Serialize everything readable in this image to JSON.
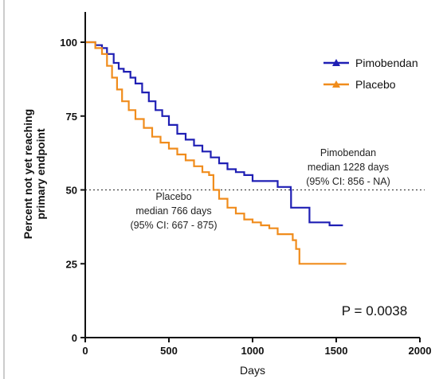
{
  "chart_data": {
    "type": "line",
    "title": "",
    "xlabel": "Days",
    "ylabel_lines": [
      "Percent not yet reaching",
      "primary endpoint"
    ],
    "xlim": [
      0,
      2000
    ],
    "ylim": [
      0,
      100
    ],
    "x_ticks": [
      "0",
      "500",
      "1000",
      "1500",
      "2000"
    ],
    "y_ticks": [
      "0",
      "25",
      "50",
      "75",
      "100"
    ],
    "reference_line": {
      "y": 50,
      "style": "dotted"
    },
    "legend": {
      "placement": "top-right"
    },
    "series": [
      {
        "name": "Pimobendan",
        "color": "#1f1fb4",
        "marker": "triangle",
        "points": [
          [
            0,
            100
          ],
          [
            60,
            99
          ],
          [
            100,
            98
          ],
          [
            130,
            96
          ],
          [
            170,
            93
          ],
          [
            200,
            91
          ],
          [
            230,
            90
          ],
          [
            270,
            88
          ],
          [
            300,
            86
          ],
          [
            340,
            83
          ],
          [
            380,
            80
          ],
          [
            420,
            77
          ],
          [
            460,
            75
          ],
          [
            500,
            72
          ],
          [
            550,
            69
          ],
          [
            600,
            67
          ],
          [
            650,
            65
          ],
          [
            700,
            63
          ],
          [
            750,
            61
          ],
          [
            800,
            59
          ],
          [
            850,
            57
          ],
          [
            900,
            56
          ],
          [
            950,
            55
          ],
          [
            1000,
            53
          ],
          [
            1050,
            53
          ],
          [
            1100,
            53
          ],
          [
            1150,
            51
          ],
          [
            1200,
            51
          ],
          [
            1228,
            50
          ],
          [
            1230,
            44
          ],
          [
            1300,
            44
          ],
          [
            1340,
            39
          ],
          [
            1400,
            39
          ],
          [
            1460,
            38
          ],
          [
            1540,
            38
          ]
        ]
      },
      {
        "name": "Placebo",
        "color": "#f08c1c",
        "marker": "triangle",
        "points": [
          [
            0,
            100
          ],
          [
            60,
            98
          ],
          [
            100,
            96
          ],
          [
            130,
            92
          ],
          [
            160,
            88
          ],
          [
            190,
            84
          ],
          [
            220,
            80
          ],
          [
            260,
            77
          ],
          [
            300,
            74
          ],
          [
            350,
            71
          ],
          [
            400,
            68
          ],
          [
            450,
            66
          ],
          [
            500,
            64
          ],
          [
            550,
            62
          ],
          [
            600,
            60
          ],
          [
            650,
            58
          ],
          [
            700,
            56
          ],
          [
            740,
            55
          ],
          [
            766,
            50
          ],
          [
            800,
            47
          ],
          [
            850,
            44
          ],
          [
            900,
            42
          ],
          [
            950,
            40
          ],
          [
            1000,
            39
          ],
          [
            1050,
            38
          ],
          [
            1100,
            37
          ],
          [
            1150,
            35
          ],
          [
            1200,
            35
          ],
          [
            1240,
            33
          ],
          [
            1260,
            30
          ],
          [
            1280,
            25
          ],
          [
            1350,
            25
          ],
          [
            1450,
            25
          ],
          [
            1560,
            25
          ]
        ]
      }
    ],
    "annotations": [
      {
        "lines": [
          "Pimobendan",
          "median 1228 days",
          "(95% CI: 856 - NA)"
        ]
      },
      {
        "lines": [
          "Placebo",
          "median 766 days",
          "(95% CI: 667 - 875)"
        ]
      },
      {
        "text": "P = 0.0038"
      }
    ]
  }
}
